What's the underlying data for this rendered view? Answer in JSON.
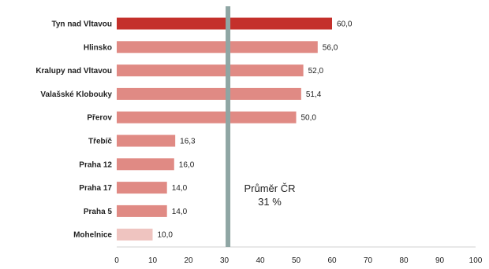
{
  "chart_data": {
    "type": "bar",
    "orientation": "horizontal",
    "categories": [
      "Tyn nad Vltavou",
      "Hlinsko",
      "Kralupy nad Vltavou",
      "Valašské Klobouky",
      "Přerov",
      "Třebíč",
      "Praha 12",
      "Praha 17",
      "Praha 5",
      "Mohelnice"
    ],
    "values": [
      60.0,
      56.0,
      52.0,
      51.4,
      50.0,
      16.3,
      16.0,
      14.0,
      14.0,
      10.0
    ],
    "value_labels": [
      "60,0",
      "56,0",
      "52,0",
      "51,4",
      "50,0",
      "16,3",
      "16,0",
      "14,0",
      "14,0",
      "10,0"
    ],
    "xlim": [
      0,
      100
    ],
    "xticks": [
      0,
      10,
      20,
      30,
      40,
      50,
      60,
      70,
      80,
      90,
      100
    ],
    "reference_line": {
      "value": 31,
      "label_line1": "Průměr ČR",
      "label_line2": "31 %",
      "color": "#8fa6a4"
    },
    "colors": {
      "highlight": "#c4302b",
      "normal": "#e08a84",
      "light": "#efc4c0"
    },
    "grid": false
  }
}
